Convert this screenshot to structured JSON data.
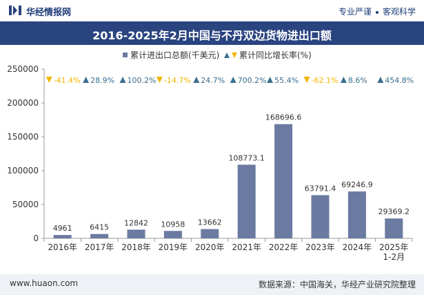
{
  "header": {
    "brand": "华经情报网",
    "tag1": "专业严谨",
    "tag2": "客观科学"
  },
  "legend": {
    "bar_label": "累计进出口总额(千美元)",
    "growth_label": "累计同比增长率(%)"
  },
  "footer": {
    "website": "www.huaon.com",
    "source": "数据来源：中国海关，华经产业研究院整理"
  },
  "colors": {
    "bar": "#6b7aa1",
    "up": "#3b6e8f",
    "down": "#f2b600",
    "title_bg": "#2a4480"
  },
  "chart_data": {
    "type": "bar",
    "title": "2016-2025年2月中国与不丹双边货物进出口额",
    "categories": [
      "2016年",
      "2017年",
      "2018年",
      "2019年",
      "2020年",
      "2021年",
      "2022年",
      "2023年",
      "2024年",
      "2025年 1-2月"
    ],
    "values": [
      4961,
      6415,
      12842,
      10958,
      13662,
      108773.1,
      168696.6,
      63791.4,
      69246.9,
      29369.2
    ],
    "value_labels": [
      "4961",
      "6415",
      "12842",
      "10958",
      "13662",
      "108773.1",
      "168696.6",
      "63791.4",
      "69246.9",
      "29369.2"
    ],
    "growth": [
      -41.4,
      28.9,
      100.2,
      -14.7,
      24.7,
      700.2,
      55.4,
      -62.1,
      8.6,
      454.8
    ],
    "growth_labels": [
      "-41.4%",
      "28.9%",
      "100.2%",
      "-14.7%",
      "24.7%",
      "700.2%",
      "55.4%",
      "-62.1%",
      "8.6%",
      "454.8%"
    ],
    "ylim": [
      0,
      250000
    ],
    "yticks": [
      "0",
      "50000",
      "100000",
      "150000",
      "200000",
      "250000"
    ],
    "grid": false,
    "legend_position": "top-center"
  }
}
